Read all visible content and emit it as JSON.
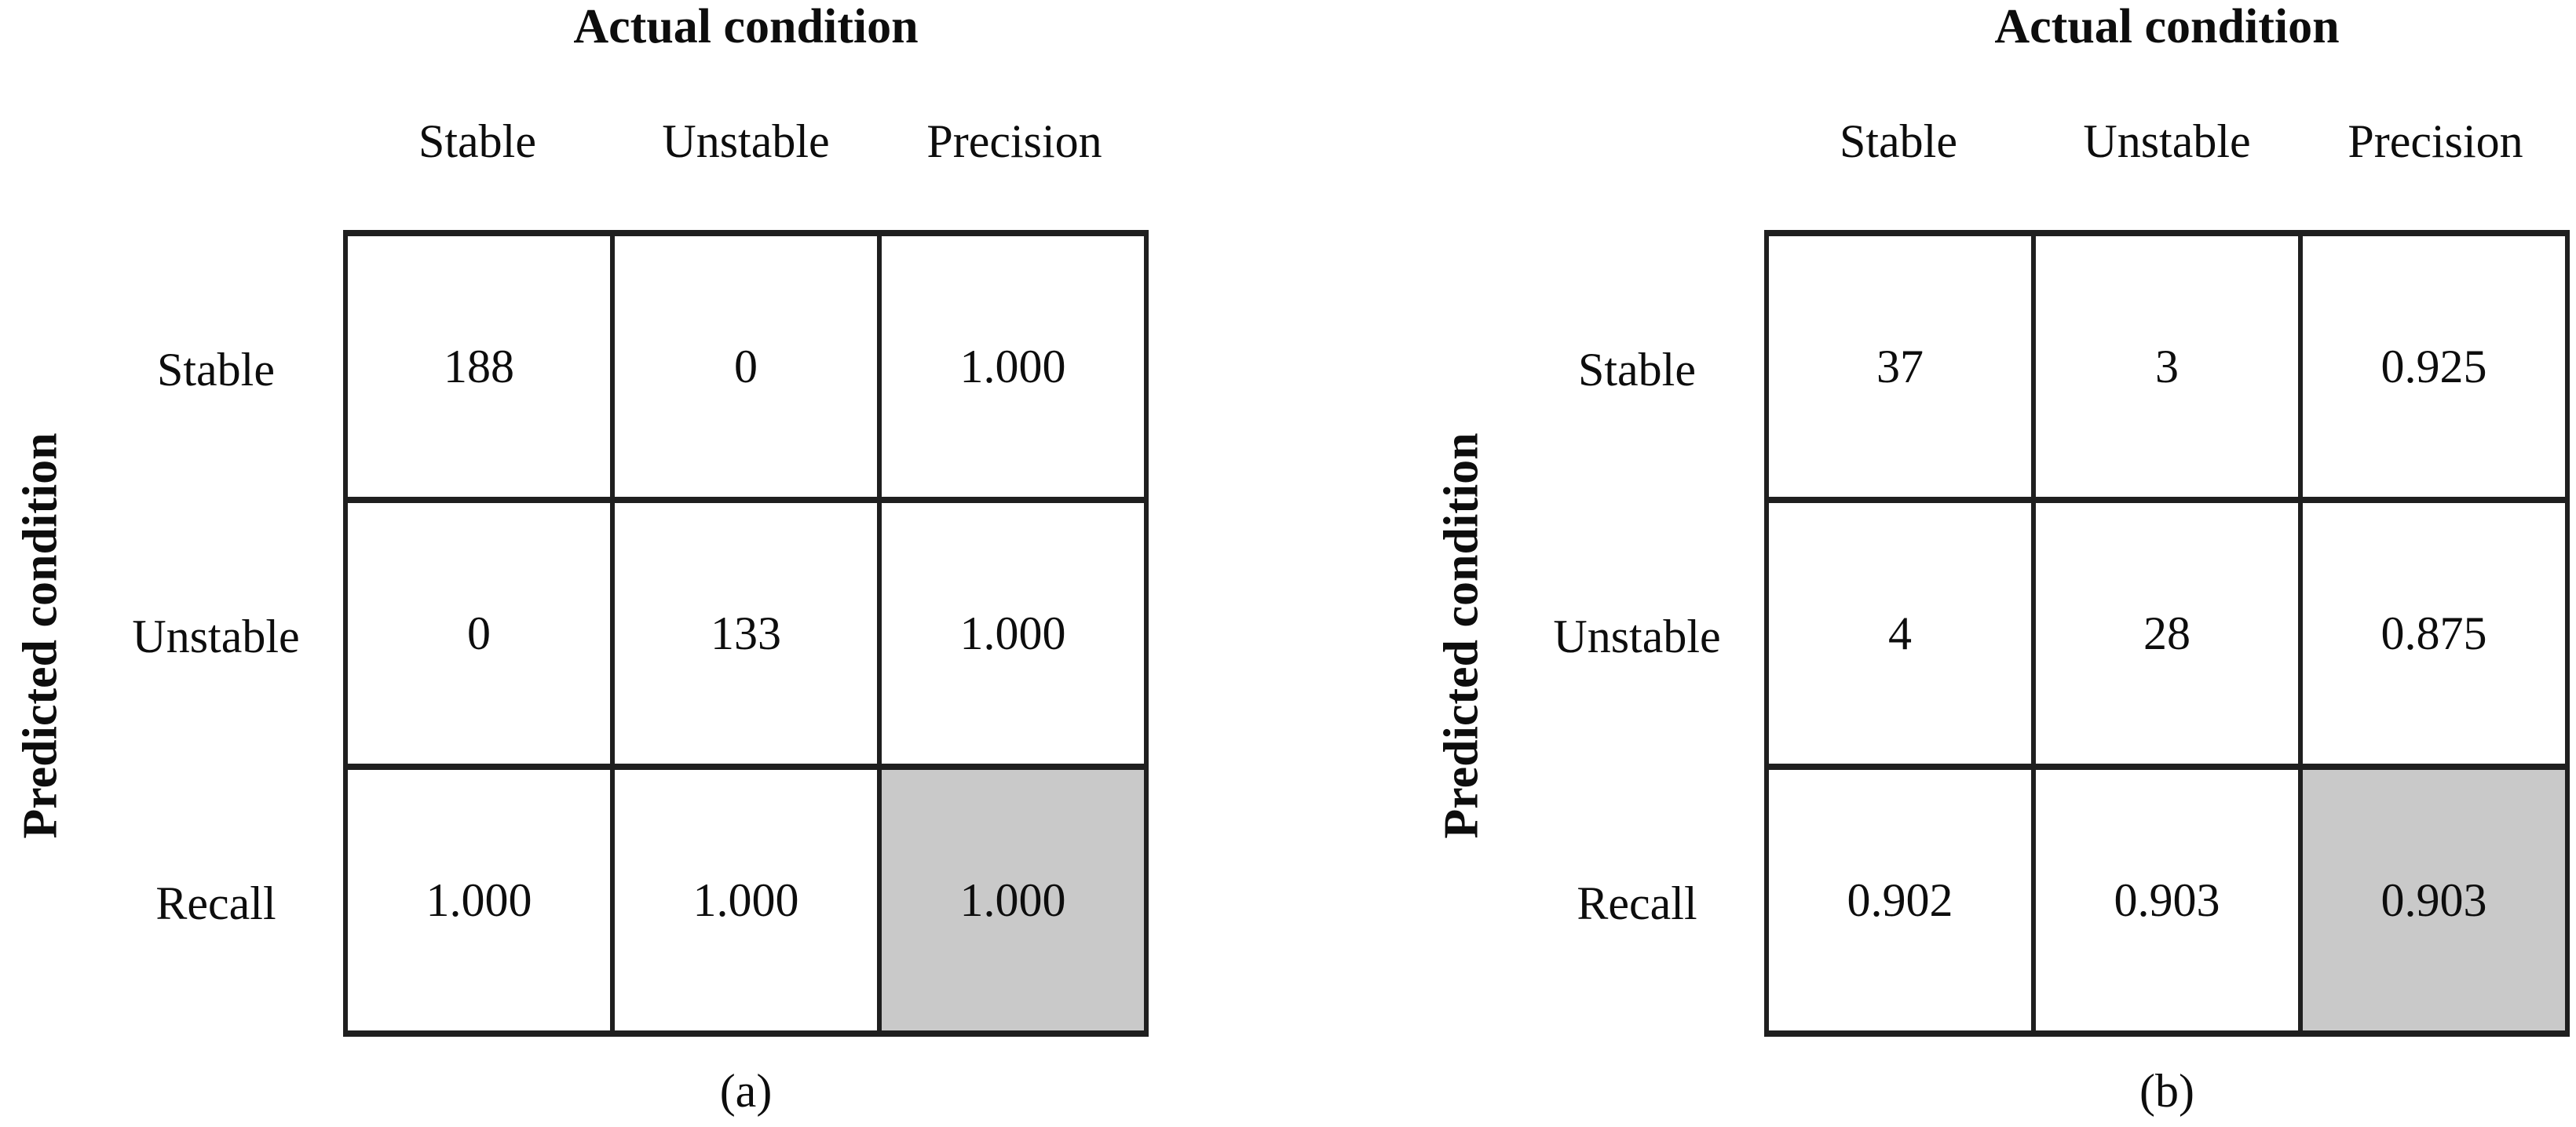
{
  "figure": {
    "kind": "confusion-matrix-figure",
    "background": "#ffffff"
  },
  "colors": {
    "grid_line": "#1f1f1f",
    "text": "#0d0d0d",
    "shaded_cell": "#c9c9c9"
  },
  "panels": [
    {
      "id": "a",
      "title": "Actual condition",
      "row_axis_label": "Predicted condition",
      "col_headers": [
        "Stable",
        "Unstable",
        "Precision"
      ],
      "row_headers": [
        "Stable",
        "Unstable",
        "Recall"
      ],
      "rows": [
        [
          "188",
          "0",
          "1.000"
        ],
        [
          "0",
          "133",
          "1.000"
        ],
        [
          "1.000",
          "1.000",
          "1.000"
        ]
      ],
      "caption": "(a)"
    },
    {
      "id": "b",
      "title": "Actual condition",
      "row_axis_label": "Predicted condition",
      "col_headers": [
        "Stable",
        "Unstable",
        "Precision"
      ],
      "row_headers": [
        "Stable",
        "Unstable",
        "Recall"
      ],
      "rows": [
        [
          "37",
          "3",
          "0.925"
        ],
        [
          "4",
          "28",
          "0.875"
        ],
        [
          "0.902",
          "0.903",
          "0.903"
        ]
      ],
      "caption": "(b)"
    }
  ],
  "chart_data": [
    {
      "type": "table",
      "subtype": "confusion_matrix_with_margins",
      "caption": "(a)",
      "col_axis_title": "Actual condition",
      "row_axis_title": "Predicted condition",
      "columns": [
        "Stable",
        "Unstable",
        "Precision"
      ],
      "rows": [
        "Stable",
        "Unstable",
        "Recall"
      ],
      "cells": [
        [
          188,
          0,
          1.0
        ],
        [
          0,
          133,
          1.0
        ],
        [
          1.0,
          1.0,
          1.0
        ]
      ],
      "notes": "Recall x Precision corner cell (overall score) shaded gray",
      "highlighted_cell": {
        "row": "Recall",
        "column": "Precision",
        "value": 1.0,
        "fill": "#c9c9c9"
      }
    },
    {
      "type": "table",
      "subtype": "confusion_matrix_with_margins",
      "caption": "(b)",
      "col_axis_title": "Actual condition",
      "row_axis_title": "Predicted condition",
      "columns": [
        "Stable",
        "Unstable",
        "Precision"
      ],
      "rows": [
        "Stable",
        "Unstable",
        "Recall"
      ],
      "cells": [
        [
          37,
          3,
          0.925
        ],
        [
          4,
          28,
          0.875
        ],
        [
          0.902,
          0.903,
          0.903
        ]
      ],
      "notes": "Recall x Precision corner cell (overall score) shaded gray",
      "highlighted_cell": {
        "row": "Recall",
        "column": "Precision",
        "value": 0.903,
        "fill": "#c9c9c9"
      }
    }
  ]
}
